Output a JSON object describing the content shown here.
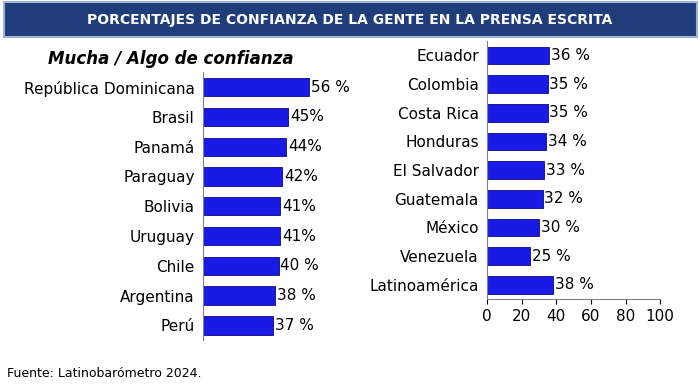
{
  "title": "PORCENTAJES DE CONFIANZA DE LA GENTE EN LA PRENSA ESCRITA",
  "source": "Fuente: Latinobarómetro 2024.",
  "chart_data": [
    {
      "type": "bar",
      "orientation": "horizontal",
      "subtitle": "Mucha / Algo de confianza",
      "categories": [
        "República Dominicana",
        "Brasil",
        "Panamá",
        "Paraguay",
        "Bolivia",
        "Uruguay",
        "Chile",
        "Argentina",
        "Perú"
      ],
      "values": [
        56,
        45,
        44,
        42,
        41,
        41,
        40,
        38,
        37
      ],
      "value_labels": [
        "56 %",
        "45%",
        "44%",
        "42%",
        "41%",
        "41%",
        "40 %",
        "38 %",
        "37 %"
      ],
      "data_labels": true,
      "color": "#1a1ae6",
      "xlim": [
        0,
        100
      ],
      "tick_labels": "y"
    },
    {
      "type": "bar",
      "orientation": "horizontal",
      "categories": [
        "Ecuador",
        "Colombia",
        "Costa Rica",
        "Honduras",
        "El Salvador",
        "Guatemala",
        "México",
        "Venezuela",
        "Latinoamérica"
      ],
      "values": [
        36,
        35,
        35,
        34,
        33,
        32,
        30,
        25,
        38
      ],
      "value_labels": [
        "36 %",
        "35 %",
        "35 %",
        "34 %",
        "33 %",
        "32 %",
        "30 %",
        "25 %",
        "38 %"
      ],
      "data_labels": true,
      "color": "#1a1ae6",
      "xlim": [
        0,
        100
      ],
      "xticks": [
        0,
        20,
        40,
        60,
        80,
        100
      ]
    }
  ]
}
